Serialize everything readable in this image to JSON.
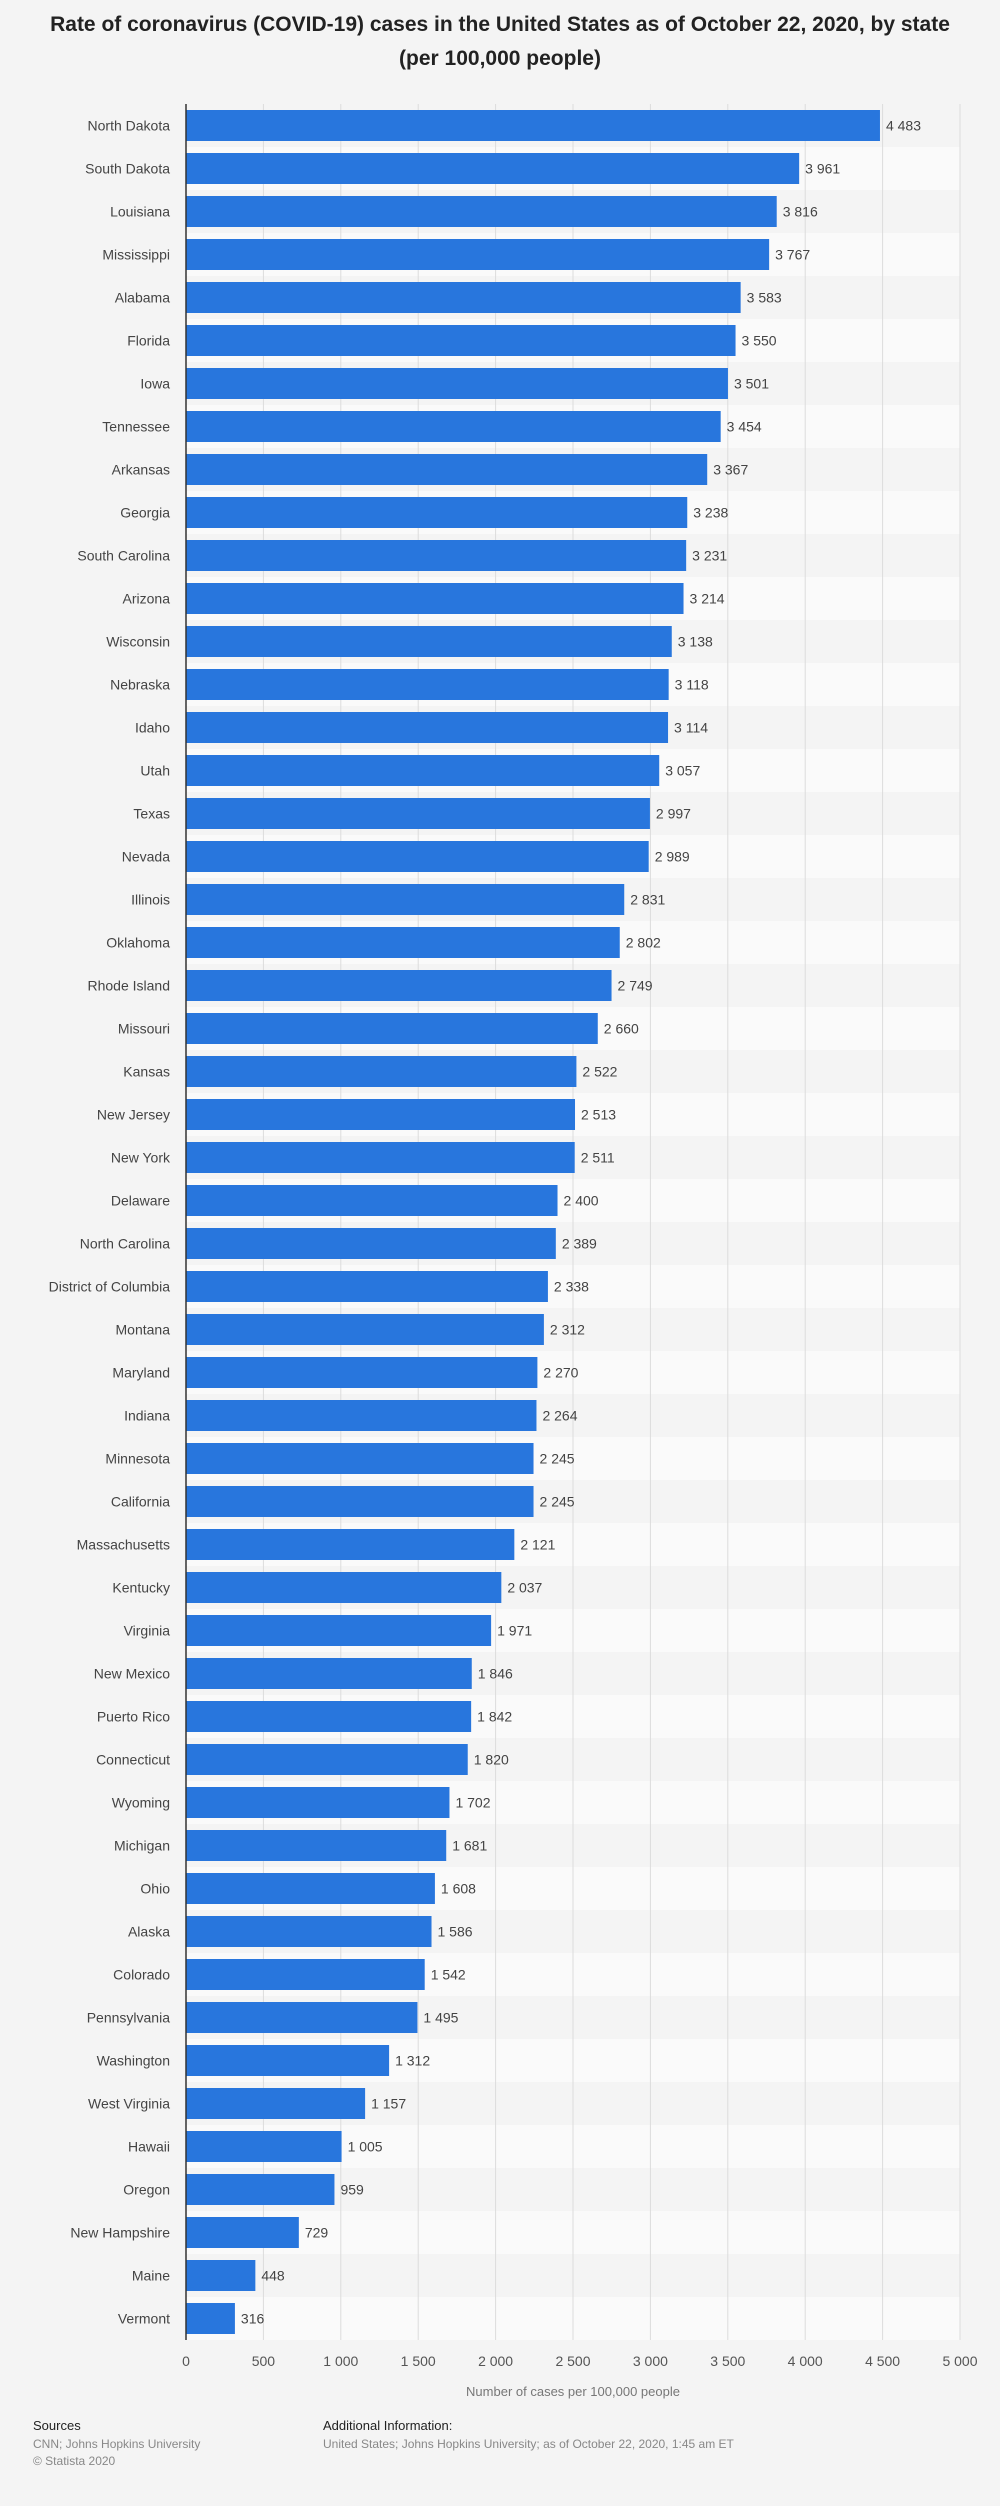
{
  "title": "Rate of coronavirus (COVID-19) cases in the United States as of October 22, 2020, by state (per 100,000 people)",
  "footer": {
    "sources_heading": "Sources",
    "sources_text": "CNN; Johns Hopkins University",
    "copyright": "© Statista 2020",
    "additional_heading": "Additional Information:",
    "additional_text": "United States; Johns Hopkins University; as of October 22, 2020, 1:45 am ET"
  },
  "colors": {
    "bar": "#2876dd",
    "background": "#f4f4f4",
    "stripe": "#fafafa",
    "grid": "#dcdcdc",
    "axis": "#333333"
  },
  "chart_data": {
    "type": "bar",
    "orientation": "horizontal",
    "categories": [
      "North Dakota",
      "South Dakota",
      "Louisiana",
      "Mississippi",
      "Alabama",
      "Florida",
      "Iowa",
      "Tennessee",
      "Arkansas",
      "Georgia",
      "South Carolina",
      "Arizona",
      "Wisconsin",
      "Nebraska",
      "Idaho",
      "Utah",
      "Texas",
      "Nevada",
      "Illinois",
      "Oklahoma",
      "Rhode Island",
      "Missouri",
      "Kansas",
      "New Jersey",
      "New York",
      "Delaware",
      "North Carolina",
      "District of Columbia",
      "Montana",
      "Maryland",
      "Indiana",
      "Minnesota",
      "California",
      "Massachusetts",
      "Kentucky",
      "Virginia",
      "New Mexico",
      "Puerto Rico",
      "Connecticut",
      "Wyoming",
      "Michigan",
      "Ohio",
      "Alaska",
      "Colorado",
      "Pennsylvania",
      "Washington",
      "West Virginia",
      "Hawaii",
      "Oregon",
      "New Hampshire",
      "Maine",
      "Vermont"
    ],
    "values": [
      4483,
      3961,
      3816,
      3767,
      3583,
      3550,
      3501,
      3454,
      3367,
      3238,
      3231,
      3214,
      3138,
      3118,
      3114,
      3057,
      2997,
      2989,
      2831,
      2802,
      2749,
      2660,
      2522,
      2513,
      2511,
      2400,
      2389,
      2338,
      2312,
      2270,
      2264,
      2245,
      2245,
      2121,
      2037,
      1971,
      1846,
      1842,
      1820,
      1702,
      1681,
      1608,
      1586,
      1542,
      1495,
      1312,
      1157,
      1005,
      959,
      729,
      448,
      316
    ],
    "value_labels": [
      "4 483",
      "3 961",
      "3 816",
      "3 767",
      "3 583",
      "3 550",
      "3 501",
      "3 454",
      "3 367",
      "3 238",
      "3 231",
      "3 214",
      "3 138",
      "3 118",
      "3 114",
      "3 057",
      "2 997",
      "2 989",
      "2 831",
      "2 802",
      "2 749",
      "2 660",
      "2 522",
      "2 513",
      "2 511",
      "2 400",
      "2 389",
      "2 338",
      "2 312",
      "2 270",
      "2 264",
      "2 245",
      "2 245",
      "2 121",
      "2 037",
      "1 971",
      "1 846",
      "1 842",
      "1 820",
      "1 702",
      "1 681",
      "1 608",
      "1 586",
      "1 542",
      "1 495",
      "1 312",
      "1 157",
      "1 005",
      "959",
      "729",
      "448",
      "316"
    ],
    "ticks": [
      0,
      500,
      1000,
      1500,
      2000,
      2500,
      3000,
      3500,
      4000,
      4500,
      5000
    ],
    "tick_labels": [
      "0",
      "500",
      "1 000",
      "1 500",
      "2 000",
      "2 500",
      "3 000",
      "3 500",
      "4 000",
      "4 500",
      "5 000"
    ],
    "xlim": [
      0,
      5000
    ],
    "xlabel": "Number of cases per 100,000 people",
    "ylabel": "",
    "grid": true,
    "legend": false
  }
}
